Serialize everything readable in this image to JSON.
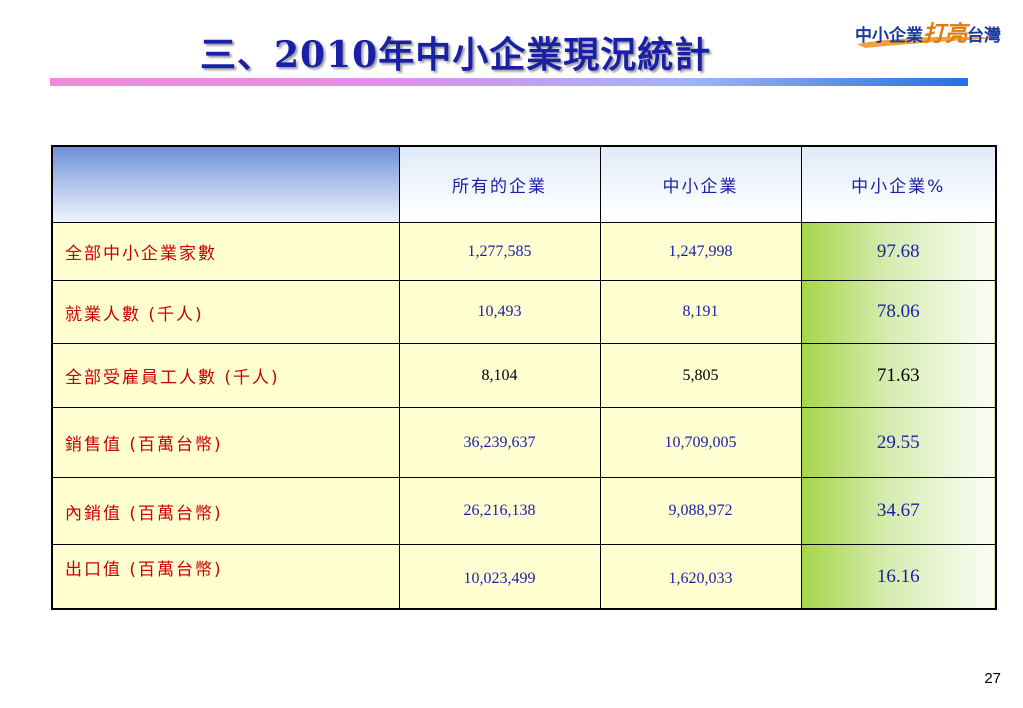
{
  "slide": {
    "title": "三、2010年中小企業現況統計",
    "page_number": "27"
  },
  "logo": {
    "part1": "中小企業",
    "part2": "打亮",
    "part3": "台灣"
  },
  "table": {
    "headers": [
      "",
      "所有的企業",
      "中小企業",
      "中小企業%"
    ],
    "rows": [
      {
        "label": "全部中小企業家數",
        "all": "1,277,585",
        "sme": "1,247,998",
        "pct": "97.68"
      },
      {
        "label": "就業人數 (千人)",
        "all": "10,493",
        "sme": "8,191",
        "pct": "78.06"
      },
      {
        "label": "全部受雇員工人數 (千人)",
        "all": "8,104",
        "sme": "5,805",
        "pct": "71.63"
      },
      {
        "label": "銷售值 (百萬台幣)",
        "all": "36,239,637",
        "sme": "10,709,005",
        "pct": "29.55"
      },
      {
        "label": "內銷值 (百萬台幣)",
        "all": "26,216,138",
        "sme": "9,088,972",
        "pct": "34.67"
      },
      {
        "label": "出口值 (百萬台幣)",
        "all": "10,023,499",
        "sme": "1,620,033",
        "pct": "16.16"
      }
    ]
  }
}
